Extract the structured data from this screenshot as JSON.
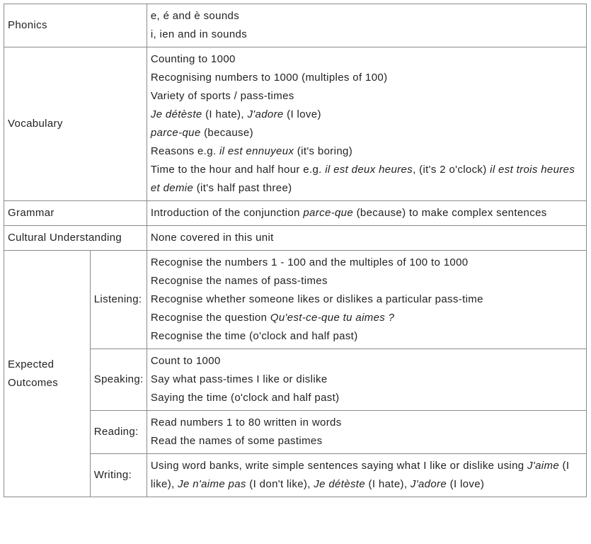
{
  "rows": [
    {
      "label": "Phonics",
      "lines": [
        [
          {
            "t": "e, é and è sounds"
          }
        ],
        [
          {
            "t": "i, ien and in sounds"
          }
        ]
      ]
    },
    {
      "label": "Vocabulary",
      "lines": [
        [
          {
            "t": "Counting to 1000"
          }
        ],
        [
          {
            "t": "Recognising numbers to 1000 (multiples of 100)"
          }
        ],
        [
          {
            "t": "Variety of sports / pass-times"
          }
        ],
        [
          {
            "t": "Je détèste",
            "i": true
          },
          {
            "t": " (I hate), "
          },
          {
            "t": "J'adore",
            "i": true
          },
          {
            "t": " (I love)"
          }
        ],
        [
          {
            "t": "parce-que",
            "i": true
          },
          {
            "t": " (because)"
          }
        ],
        [
          {
            "t": "Reasons e.g. "
          },
          {
            "t": "il est ennuyeux",
            "i": true
          },
          {
            "t": " (it's boring)"
          }
        ],
        [
          {
            "t": "Time to the hour and half hour e.g. "
          },
          {
            "t": "il est deux heures",
            "i": true
          },
          {
            "t": ", (it's 2 o'clock) "
          },
          {
            "t": "il est trois heures et demie",
            "i": true
          },
          {
            "t": " (it's half past three)"
          }
        ]
      ]
    },
    {
      "label": "Grammar",
      "lines": [
        [
          {
            "t": "Introduction of the conjunction "
          },
          {
            "t": "parce-que",
            "i": true
          },
          {
            "t": " (because) to make complex sentences"
          }
        ]
      ]
    },
    {
      "label": "Cultural Understanding",
      "lines": [
        [
          {
            "t": "None covered in this unit"
          }
        ]
      ]
    }
  ],
  "outcomes": {
    "label": "Expected Outcomes",
    "sub": [
      {
        "label": "Listening:",
        "lines": [
          [
            {
              "t": "Recognise the numbers 1 - 100 and the multiples of 100 to 1000"
            }
          ],
          [
            {
              "t": "Recognise the names of pass-times"
            }
          ],
          [
            {
              "t": "Recognise whether someone likes or dislikes a particular pass-time"
            }
          ],
          [
            {
              "t": "Recognise the question "
            },
            {
              "t": "Qu'est-ce-que tu aimes ?",
              "i": true
            }
          ],
          [
            {
              "t": "Recognise the time (o'clock and half past)"
            }
          ]
        ]
      },
      {
        "label": "Speaking:",
        "lines": [
          [
            {
              "t": "Count to 1000"
            }
          ],
          [
            {
              "t": "Say what pass-times I like or dislike"
            }
          ],
          [
            {
              "t": "Saying the time (o'clock and half past)"
            }
          ]
        ]
      },
      {
        "label": "Reading:",
        "lines": [
          [
            {
              "t": "Read numbers 1 to 80 written in words"
            }
          ],
          [
            {
              "t": "Read the names of some pastimes"
            }
          ]
        ]
      },
      {
        "label": "Writing:",
        "lines": [
          [
            {
              "t": "Using word banks, write simple sentences saying what I like or dislike using "
            },
            {
              "t": "J'aime",
              "i": true
            },
            {
              "t": " (I like), "
            },
            {
              "t": "Je n'aime pas",
              "i": true
            },
            {
              "t": " (I don't like), "
            },
            {
              "t": "Je détèste",
              "i": true
            },
            {
              "t": " (I hate), "
            },
            {
              "t": "J'adore",
              "i": true
            },
            {
              "t": " (I love)"
            }
          ]
        ]
      }
    ]
  }
}
